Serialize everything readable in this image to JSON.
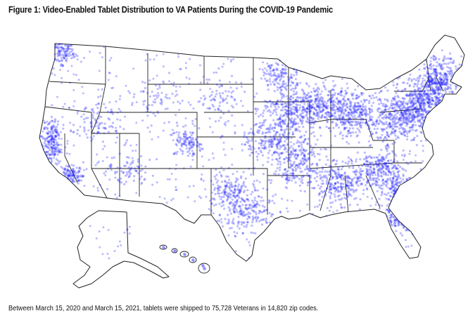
{
  "figure": {
    "title": "Figure 1: Video-Enabled Tablet Distribution to VA Patients During the COVID-19 Pandemic",
    "caption": "Between March 15, 2020 and March 15, 2021, tablets were shipped to 75,728 Veterans in 14,820 zip codes."
  },
  "map": {
    "region": "United States (contiguous states, Alaska and Hawaii insets)",
    "state_boundaries": true,
    "marker_color": "#1f1fff",
    "marker_opacity": 0.3,
    "dense_regions": [
      "Northeast corridor",
      "Florida",
      "Great Lakes",
      "Southeast",
      "Texas metros",
      "California coast",
      "Pacific Northwest",
      "Colorado Front Range"
    ]
  }
}
